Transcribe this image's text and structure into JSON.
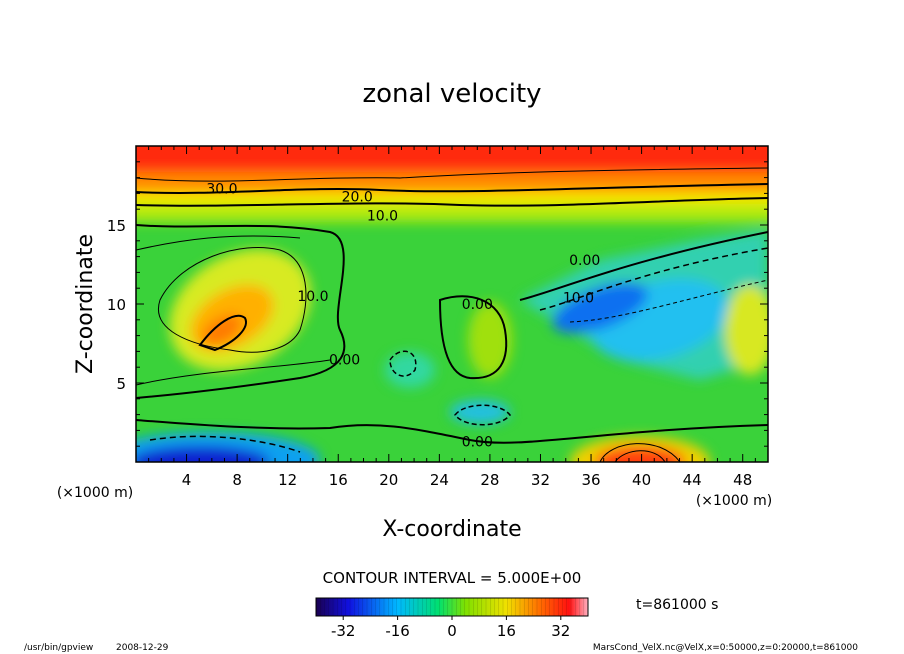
{
  "chart_data": {
    "type": "heatmap",
    "title": "zonal velocity",
    "xlabel": "X-coordinate",
    "ylabel": "Z-coordinate",
    "x_unit": "(×1000 m)",
    "y_unit": "(×1000 m)",
    "xlim": [
      0,
      50
    ],
    "ylim": [
      0,
      20
    ],
    "x_ticks": [
      4,
      8,
      12,
      16,
      20,
      24,
      28,
      32,
      36,
      40,
      44,
      48
    ],
    "y_ticks": [
      5,
      10,
      15
    ],
    "contour_interval_text": "CONTOUR INTERVAL = 5.000E+00",
    "contour_labels": [
      {
        "text": "30.0",
        "x": 6.8,
        "z": 17.3
      },
      {
        "text": "20.0",
        "x": 17.5,
        "z": 16.8
      },
      {
        "text": "10.0",
        "x": 19.5,
        "z": 15.6
      },
      {
        "text": "0.00",
        "x": 35.5,
        "z": 12.8
      },
      {
        "text": "10.0",
        "x": 35.0,
        "z": 10.4
      },
      {
        "text": "10.0",
        "x": 14.0,
        "z": 10.5
      },
      {
        "text": "0.00",
        "x": 27.0,
        "z": 10.0
      },
      {
        "text": "0.00",
        "x": 16.5,
        "z": 6.5
      },
      {
        "text": "0.00",
        "x": 27.0,
        "z": 1.3
      }
    ],
    "colorbar": {
      "ticks": [
        -32,
        -16,
        0,
        16,
        32
      ],
      "min": -40,
      "max": 40
    },
    "time_label": "t=861000 s"
  },
  "footer": {
    "program": "/usr/bin/gpview",
    "date": "2008-12-29",
    "source": "MarsCond_VelX.nc@VelX,x=0:50000,z=0:20000,t=861000"
  }
}
